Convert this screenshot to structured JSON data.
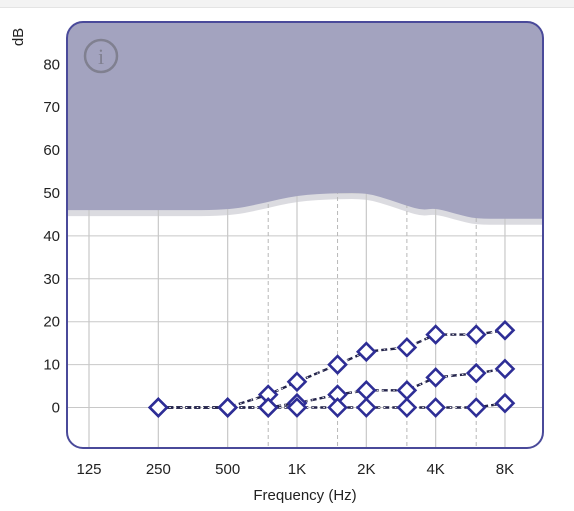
{
  "chart_data": {
    "type": "line",
    "ylabel": "dB",
    "xlabel": "Frequency (Hz)",
    "ylim": [
      -10,
      90
    ],
    "x_tick_labels": [
      "125",
      "250",
      "500",
      "1K",
      "2K",
      "4K",
      "8K"
    ],
    "x_tick_values": [
      125,
      250,
      500,
      1000,
      2000,
      4000,
      8000
    ],
    "x_minor_grid": [
      750,
      1500,
      3000,
      6000
    ],
    "y_ticks": [
      0,
      10,
      20,
      30,
      40,
      50,
      60,
      70,
      80
    ],
    "x_scale": "log",
    "grid": true,
    "info_icon": "info-icon",
    "shaded_region": {
      "fill": "#a3a3bf",
      "lower_boundary": {
        "x": [
          125,
          250,
          500,
          700,
          1000,
          1500,
          2000,
          2500,
          3000,
          3500,
          4000,
          5000,
          6000,
          8000
        ],
        "y": [
          46,
          46,
          46,
          47.5,
          49.5,
          50,
          50,
          48.5,
          47,
          46,
          46.5,
          45,
          44,
          44
        ]
      }
    },
    "series": [
      {
        "x": [
          250,
          500,
          750,
          1000,
          1500,
          2000,
          3000,
          4000,
          6000,
          8000
        ],
        "y": [
          0,
          0,
          3,
          6,
          10,
          13,
          14,
          17,
          17,
          18
        ]
      },
      {
        "x": [
          250,
          500,
          750,
          1000,
          1500,
          2000,
          3000,
          4000,
          6000,
          8000
        ],
        "y": [
          0,
          0,
          0,
          1,
          3,
          4,
          4,
          7,
          8,
          9
        ]
      },
      {
        "x": [
          250,
          500,
          750,
          1000,
          1500,
          2000,
          3000,
          4000,
          6000,
          8000
        ],
        "y": [
          0,
          0,
          0,
          0,
          0,
          0,
          0,
          0,
          0,
          1
        ]
      }
    ],
    "colors": {
      "frame": "#4a4a9a",
      "marker": "#2e2e96",
      "line": "#23234a",
      "grid": "#c8c8c8",
      "shade": "#a3a3bf",
      "shade_ghost": "#d2d2d8"
    }
  }
}
